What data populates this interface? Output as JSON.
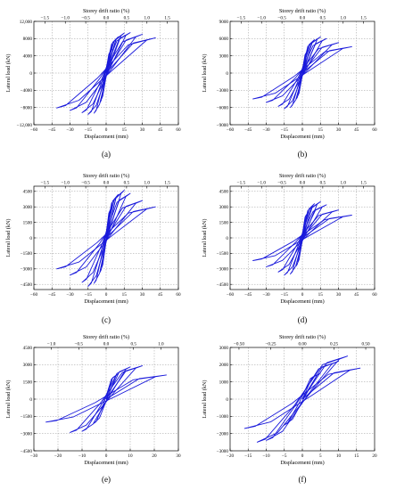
{
  "figure": {
    "panels": [
      {
        "id": "a",
        "caption": "(a)"
      },
      {
        "id": "b",
        "caption": "(b)"
      },
      {
        "id": "c",
        "caption": "(c)"
      },
      {
        "id": "d",
        "caption": "(d)"
      },
      {
        "id": "e",
        "caption": "(e)"
      },
      {
        "id": "f",
        "caption": "(f)"
      }
    ]
  },
  "colors": {
    "curve": "#1a1adb",
    "grid": "#9a9a9a",
    "axis": "#000000"
  },
  "chart_data": [
    {
      "type": "line",
      "panel": "a",
      "xlabel": "Displacement (mm)",
      "ylabel": "Lateral load (kN)",
      "x2label": "Storey drift ratio (%)",
      "xlim": [
        -60,
        60
      ],
      "ylim": [
        -12000,
        12000
      ],
      "xticks": [
        "−60",
        "−45",
        "−30",
        "−15",
        "0",
        "15",
        "30",
        "45",
        "60"
      ],
      "yticks": [
        "−12,000",
        "−8000",
        "−4000",
        "0",
        "4000",
        "8000",
        "12,000"
      ],
      "x2lim": [
        -1.77,
        1.77
      ],
      "x2ticks": [
        "−1.5",
        "−1.0",
        "−0.5",
        "0.0",
        "0.5",
        "1.0",
        "1.5"
      ],
      "grid": true,
      "peak_displacements": [
        5,
        10,
        15,
        20,
        30,
        41
      ],
      "peak_positive_loads": [
        5500,
        8400,
        9300,
        9400,
        9000,
        8200
      ],
      "peak_negative_loads": [
        -6800,
        -9300,
        -9600,
        -9200,
        -8700,
        -8100
      ]
    },
    {
      "type": "line",
      "panel": "b",
      "xlabel": "Displacement (mm)",
      "ylabel": "Lateral load (kN)",
      "x2label": "Storey drift ratio (%)",
      "xlim": [
        -60,
        60
      ],
      "ylim": [
        -9000,
        9000
      ],
      "xticks": [
        "−60",
        "−45",
        "−30",
        "−15",
        "0",
        "15",
        "30",
        "45",
        "60"
      ],
      "yticks": [
        "−9000",
        "−6000",
        "−3000",
        "0",
        "3000",
        "6000",
        "9000"
      ],
      "x2lim": [
        -1.77,
        1.77
      ],
      "x2ticks": [
        "−1.5",
        "−1.0",
        "−0.5",
        "0.0",
        "0.5",
        "1.0",
        "1.5"
      ],
      "grid": true,
      "peak_displacements": [
        5,
        10,
        15,
        20,
        30,
        41
      ],
      "peak_positive_loads": [
        4000,
        5800,
        6300,
        6000,
        5300,
        4600
      ],
      "peak_negative_loads": [
        -4500,
        -6000,
        -6200,
        -5800,
        -5100,
        -4500
      ]
    },
    {
      "type": "line",
      "panel": "c",
      "xlabel": "Displacement (mm)",
      "ylabel": "Lateral load (kN)",
      "x2label": "Storey drift ratio (%)",
      "xlim": [
        -60,
        60
      ],
      "ylim": [
        -5000,
        5000
      ],
      "xticks": [
        "−60",
        "−45",
        "−30",
        "−15",
        "0",
        "15",
        "30",
        "45",
        "60"
      ],
      "yticks": [
        "−4500",
        "−3000",
        "−1500",
        "0",
        "1500",
        "3000",
        "4500"
      ],
      "x2lim": [
        -1.77,
        1.77
      ],
      "x2ticks": [
        "−1.5",
        "−1.0",
        "−0.5",
        "0.0",
        "0.5",
        "1.0",
        "1.5"
      ],
      "grid": true,
      "peak_displacements": [
        5,
        10,
        15,
        20,
        30,
        41
      ],
      "peak_positive_loads": [
        3000,
        4200,
        4600,
        4300,
        3600,
        3000
      ],
      "peak_negative_loads": [
        -3300,
        -4400,
        -4700,
        -4300,
        -3600,
        -3000
      ]
    },
    {
      "type": "line",
      "panel": "d",
      "xlabel": "Displacement (mm)",
      "ylabel": "Lateral load (kN)",
      "x2label": "Storey drift ratio (%)",
      "xlim": [
        -60,
        60
      ],
      "ylim": [
        -5000,
        5000
      ],
      "xticks": [
        "−60",
        "−45",
        "−30",
        "−15",
        "0",
        "15",
        "30",
        "45",
        "60"
      ],
      "yticks": [
        "−4500",
        "−3000",
        "−1500",
        "0",
        "1500",
        "3000",
        "4500"
      ],
      "x2lim": [
        -1.77,
        1.77
      ],
      "x2ticks": [
        "−1.5",
        "−1.0",
        "−0.5",
        "0.0",
        "0.5",
        "1.0",
        "1.5"
      ],
      "grid": true,
      "peak_displacements": [
        5,
        10,
        15,
        20,
        30,
        41
      ],
      "peak_positive_loads": [
        2500,
        3300,
        3500,
        3200,
        2700,
        2200
      ],
      "peak_negative_loads": [
        -2700,
        -3500,
        -3600,
        -3300,
        -2800,
        -2200
      ]
    },
    {
      "type": "line",
      "panel": "e",
      "xlabel": "Displacement (mm)",
      "ylabel": "Lateral load (kN)",
      "x2label": "Storey drift ratio (%)",
      "xlim": [
        -30,
        30
      ],
      "ylim": [
        -4500,
        4500
      ],
      "xticks": [
        "−30",
        "−20",
        "−10",
        "0",
        "10",
        "20",
        "30"
      ],
      "yticks": [
        "−4500",
        "−3000",
        "−1500",
        "0",
        "1500",
        "3000",
        "4500"
      ],
      "x2lim": [
        -1.32,
        1.32
      ],
      "x2ticks": [
        "−1.0",
        "−0.5",
        "0.0",
        "0.5",
        "1.0"
      ],
      "grid": true,
      "peak_displacements": [
        5,
        10,
        15,
        25
      ],
      "peak_positive_loads": [
        2200,
        2800,
        2900,
        2100
      ],
      "peak_negative_loads": [
        -2100,
        -2800,
        -2900,
        -2000
      ]
    },
    {
      "type": "line",
      "panel": "f",
      "xlabel": "Displacement (mm)",
      "ylabel": "Lateral load (kN)",
      "x2label": "Storey drift ratio (%)",
      "xlim": [
        -20,
        20
      ],
      "ylim": [
        -3000,
        3000
      ],
      "xticks": [
        "−20",
        "−15",
        "−10",
        "−5",
        "0",
        "5",
        "10",
        "15",
        "20"
      ],
      "yticks": [
        "−3000",
        "−2000",
        "−1000",
        "0",
        "1000",
        "2000",
        "3000"
      ],
      "x2lim": [
        -0.57,
        0.57
      ],
      "x2ticks": [
        "−0.50",
        "−0.25",
        "0.00",
        "0.25",
        "0.50"
      ],
      "grid": true,
      "peak_displacements": [
        5,
        10,
        12.5,
        16
      ],
      "peak_positive_loads": [
        1500,
        2200,
        2500,
        1800
      ],
      "peak_negative_loads": [
        -1500,
        -2400,
        -2500,
        -1700
      ]
    }
  ]
}
